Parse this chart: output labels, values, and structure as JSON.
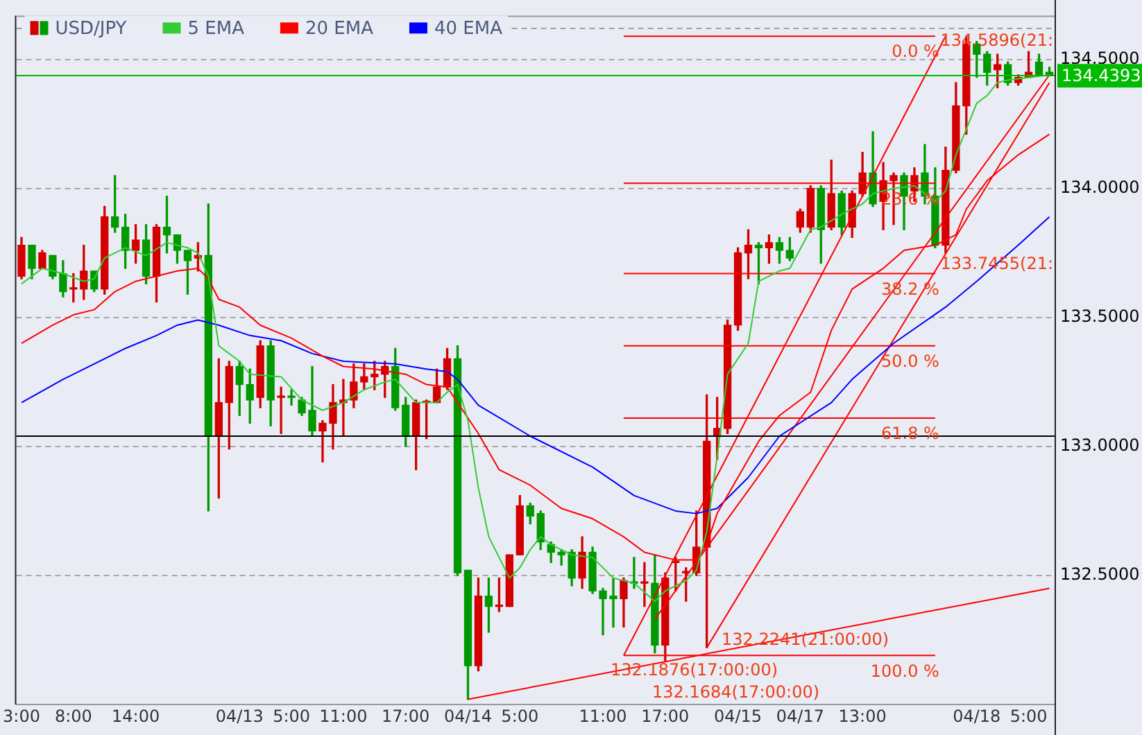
{
  "chart_data": {
    "type": "candlestick",
    "categories": [
      "3:00",
      null,
      null,
      null,
      null,
      "8:00",
      null,
      null,
      null,
      null,
      null,
      "14:00",
      null,
      null,
      null,
      null,
      null,
      null,
      null,
      null,
      null,
      "04/13",
      null,
      null,
      null,
      null,
      "5:00",
      null,
      null,
      null,
      null,
      "11:00",
      null,
      null,
      null,
      null,
      null,
      "17:00",
      null,
      null,
      null,
      null,
      null,
      "04/14",
      null,
      null,
      null,
      null,
      "5:00",
      null,
      null,
      null,
      null,
      null,
      null,
      null,
      "11:00",
      null,
      null,
      null,
      null,
      null,
      "17:00",
      null,
      null,
      null,
      null,
      null,
      null,
      "04/15",
      null,
      null,
      null,
      null,
      null,
      "04/17",
      null,
      null,
      null,
      null,
      null,
      "13:00",
      null,
      null,
      null,
      null,
      null,
      null,
      null,
      null,
      null,
      null,
      "04/18",
      null,
      null,
      null,
      null,
      "5:00",
      null,
      null
    ],
    "ylim": [
      132.0,
      134.67
    ],
    "yticks": [
      {
        "value": 132.5,
        "label": "132.5000"
      },
      {
        "value": 133,
        "label": "133.0000"
      },
      {
        "value": 133.5,
        "label": "133.5000"
      },
      {
        "value": 134,
        "label": "134.0000"
      },
      {
        "value": 134.5,
        "label": "134.5000"
      }
    ],
    "grid": "y",
    "legend": "top left",
    "series": [
      {
        "name": "USD/JPY",
        "ohlc": [
          [
            133.66,
            133.81,
            133.65,
            133.78
          ],
          [
            133.78,
            133.78,
            133.65,
            133.69
          ],
          [
            133.69,
            133.76,
            133.69,
            133.75
          ],
          [
            133.74,
            133.74,
            133.65,
            133.66
          ],
          [
            133.67,
            133.72,
            133.58,
            133.6
          ],
          [
            133.61,
            133.67,
            133.56,
            133.61
          ],
          [
            133.61,
            133.78,
            133.57,
            133.68
          ],
          [
            133.68,
            133.68,
            133.6,
            133.61
          ],
          [
            133.61,
            133.93,
            133.59,
            133.89
          ],
          [
            133.89,
            134.05,
            133.83,
            133.85
          ],
          [
            133.85,
            133.9,
            133.69,
            133.76
          ],
          [
            133.76,
            133.86,
            133.71,
            133.8
          ],
          [
            133.8,
            133.86,
            133.63,
            133.66
          ],
          [
            133.66,
            133.86,
            133.56,
            133.85
          ],
          [
            133.85,
            133.97,
            133.75,
            133.82
          ],
          [
            133.82,
            133.82,
            133.71,
            133.76
          ],
          [
            133.76,
            133.76,
            133.59,
            133.72
          ],
          [
            133.73,
            133.79,
            133.68,
            133.74
          ],
          [
            133.74,
            133.94,
            132.75,
            133.04
          ],
          [
            133.04,
            133.34,
            132.8,
            133.17
          ],
          [
            133.17,
            133.33,
            132.99,
            133.31
          ],
          [
            133.31,
            133.33,
            133.12,
            133.24
          ],
          [
            133.24,
            133.3,
            133.09,
            133.18
          ],
          [
            133.19,
            133.41,
            133.15,
            133.39
          ],
          [
            133.39,
            133.41,
            133.08,
            133.18
          ],
          [
            133.19,
            133.23,
            133.05,
            133.19
          ],
          [
            133.19,
            133.22,
            133.16,
            133.19
          ],
          [
            133.18,
            133.19,
            133.12,
            133.13
          ],
          [
            133.14,
            133.31,
            133.04,
            133.06
          ],
          [
            133.06,
            133.1,
            132.94,
            133.09
          ],
          [
            133.09,
            133.24,
            132.99,
            133.17
          ],
          [
            133.17,
            133.26,
            133.04,
            133.18
          ],
          [
            133.18,
            133.32,
            133.15,
            133.25
          ],
          [
            133.25,
            133.32,
            133.22,
            133.27
          ],
          [
            133.27,
            133.33,
            133.22,
            133.28
          ],
          [
            133.28,
            133.33,
            133.19,
            133.31
          ],
          [
            133.31,
            133.38,
            133.14,
            133.15
          ],
          [
            133.16,
            133.19,
            133.0,
            133.04
          ],
          [
            133.04,
            133.18,
            132.91,
            133.17
          ],
          [
            133.17,
            133.18,
            133.03,
            133.17
          ],
          [
            133.17,
            133.3,
            133.17,
            133.23
          ],
          [
            133.23,
            133.38,
            133.22,
            133.34
          ],
          [
            133.34,
            133.39,
            132.5,
            132.51
          ],
          [
            132.52,
            132.52,
            132.02,
            132.15
          ],
          [
            132.15,
            132.49,
            132.13,
            132.42
          ],
          [
            132.42,
            132.49,
            132.28,
            132.38
          ],
          [
            132.38,
            132.49,
            132.36,
            132.38
          ],
          [
            132.38,
            132.58,
            132.38,
            132.58
          ],
          [
            132.58,
            132.81,
            132.58,
            132.77
          ],
          [
            132.77,
            132.78,
            132.7,
            132.73
          ],
          [
            132.74,
            132.75,
            132.6,
            132.63
          ],
          [
            132.62,
            132.63,
            132.55,
            132.59
          ],
          [
            132.59,
            132.6,
            132.54,
            132.58
          ],
          [
            132.59,
            132.6,
            132.46,
            132.49
          ],
          [
            132.49,
            132.65,
            132.45,
            132.59
          ],
          [
            132.59,
            132.61,
            132.43,
            132.44
          ],
          [
            132.44,
            132.45,
            132.27,
            132.41
          ],
          [
            132.42,
            132.49,
            132.3,
            132.41
          ],
          [
            132.41,
            132.49,
            132.3,
            132.48
          ],
          [
            132.47,
            132.57,
            132.45,
            132.47
          ],
          [
            132.47,
            132.55,
            132.38,
            132.47
          ],
          [
            132.47,
            132.58,
            132.2,
            132.23
          ],
          [
            132.23,
            132.51,
            132.17,
            132.49
          ],
          [
            132.55,
            132.57,
            132.44,
            132.55
          ],
          [
            132.51,
            132.53,
            132.4,
            132.51
          ],
          [
            132.51,
            132.75,
            132.5,
            132.61
          ],
          [
            132.61,
            133.2,
            132.22,
            133.02
          ],
          [
            133.04,
            133.19,
            132.95,
            133.07
          ],
          [
            133.07,
            133.49,
            133.05,
            133.47
          ],
          [
            133.47,
            133.77,
            133.45,
            133.75
          ],
          [
            133.75,
            133.84,
            133.65,
            133.78
          ],
          [
            133.78,
            133.79,
            133.63,
            133.77
          ],
          [
            133.77,
            133.82,
            133.71,
            133.79
          ],
          [
            133.79,
            133.81,
            133.71,
            133.76
          ],
          [
            133.76,
            133.81,
            133.72,
            133.73
          ],
          [
            133.85,
            133.92,
            133.83,
            133.91
          ],
          [
            133.85,
            134.01,
            133.83,
            134.0
          ],
          [
            134.0,
            134.01,
            133.71,
            133.84
          ],
          [
            133.85,
            134.11,
            133.84,
            133.98
          ],
          [
            133.98,
            133.99,
            133.82,
            133.85
          ],
          [
            133.85,
            133.99,
            133.81,
            133.98
          ],
          [
            133.98,
            134.14,
            133.97,
            134.06
          ],
          [
            134.06,
            134.22,
            133.93,
            133.94
          ],
          [
            133.95,
            134.1,
            133.84,
            134.03
          ],
          [
            134.03,
            134.06,
            133.86,
            134.05
          ],
          [
            134.05,
            134.06,
            133.84,
            133.97
          ],
          [
            133.99,
            134.08,
            133.95,
            134.05
          ],
          [
            134.06,
            134.17,
            133.94,
            133.97
          ],
          [
            133.97,
            134.08,
            133.77,
            133.78
          ],
          [
            133.78,
            134.16,
            133.75,
            134.07
          ],
          [
            134.07,
            134.41,
            134.06,
            134.32
          ],
          [
            134.32,
            134.59,
            134.21,
            134.56
          ],
          [
            134.56,
            134.57,
            134.43,
            134.52
          ],
          [
            134.52,
            134.53,
            134.4,
            134.45
          ],
          [
            134.46,
            134.52,
            134.39,
            134.48
          ],
          [
            134.48,
            134.49,
            134.4,
            134.41
          ],
          [
            134.41,
            134.44,
            134.4,
            134.43
          ],
          [
            134.43,
            134.53,
            134.43,
            134.45
          ],
          [
            134.49,
            134.52,
            134.44,
            134.44
          ],
          [
            134.45,
            134.47,
            134.44,
            134.44
          ]
        ],
        "colors": [
          "#d40000",
          "#009a00",
          "#d40000",
          "#009a00",
          "#009a00",
          "#d40000",
          "#d40000",
          "#009a00",
          "#d40000",
          "#009a00",
          "#009a00",
          "#d40000",
          "#009a00",
          "#d40000",
          "#009a00",
          "#009a00",
          "#009a00",
          "#d40000",
          "#009a00",
          "#d40000",
          "#d40000",
          "#009a00",
          "#009a00",
          "#d40000",
          "#009a00",
          "#d40000",
          "#009a00",
          "#009a00",
          "#009a00",
          "#d40000",
          "#d40000",
          "#d40000",
          "#d40000",
          "#d40000",
          "#d40000",
          "#d40000",
          "#009a00",
          "#009a00",
          "#d40000",
          "#d40000",
          "#d40000",
          "#d40000",
          "#009a00",
          "#009a00",
          "#d40000",
          "#009a00",
          "#d40000",
          "#d40000",
          "#d40000",
          "#009a00",
          "#009a00",
          "#009a00",
          "#009a00",
          "#009a00",
          "#d40000",
          "#009a00",
          "#009a00",
          "#009a00",
          "#d40000",
          "#009a00",
          "#d40000",
          "#009a00",
          "#d40000",
          "#d40000",
          "#d40000",
          "#d40000",
          "#d40000",
          "#d40000",
          "#d40000",
          "#d40000",
          "#d40000",
          "#009a00",
          "#d40000",
          "#009a00",
          "#009a00",
          "#d40000",
          "#d40000",
          "#009a00",
          "#d40000",
          "#009a00",
          "#d40000",
          "#d40000",
          "#009a00",
          "#d40000",
          "#d40000",
          "#009a00",
          "#d40000",
          "#009a00",
          "#009a00",
          "#d40000",
          "#d40000",
          "#d40000",
          "#009a00",
          "#009a00",
          "#d40000",
          "#009a00",
          "#d40000",
          "#d40000",
          "#009a00",
          "#009a00"
        ]
      },
      {
        "type": "line",
        "name": "5 EMA",
        "color": "#33cc33",
        "values": [
          133.63,
          null,
          133.69,
          null,
          133.67,
          null,
          133.64,
          133.65,
          133.73,
          null,
          133.77,
          null,
          133.74,
          null,
          133.79,
          null,
          133.77,
          133.75,
          133.66,
          133.39,
          null,
          133.33,
          133.28,
          null,
          null,
          133.27,
          null,
          133.18,
          null,
          133.14,
          null,
          133.17,
          null,
          133.22,
          null,
          133.25,
          133.26,
          null,
          133.17,
          null,
          133.17,
          133.21,
          133.24,
          133.1,
          132.84,
          132.65,
          null,
          132.49,
          132.53,
          132.6,
          132.65,
          132.62,
          null,
          132.58,
          null,
          132.57,
          null,
          132.49,
          null,
          132.47,
          null,
          132.4,
          132.44,
          null,
          132.48,
          132.52,
          132.67,
          132.96,
          133.28,
          null,
          133.4,
          133.64,
          null,
          133.68,
          133.69,
          null,
          133.84,
          133.85,
          null,
          133.9,
          null,
          133.94,
          133.98,
          null,
          134.0,
          null,
          134.01,
          null,
          133.95,
          133.99,
          134.13,
          null,
          134.33,
          134.36,
          134.41,
          134.42,
          null,
          134.43,
          null,
          134.44
        ]
      },
      {
        "type": "line",
        "name": "20 EMA",
        "color": "#ff0000",
        "values": [
          133.4,
          null,
          null,
          133.47,
          null,
          133.51,
          null,
          133.53,
          null,
          133.6,
          null,
          133.64,
          null,
          null,
          null,
          133.68,
          null,
          133.69,
          133.65,
          133.57,
          null,
          133.54,
          null,
          133.47,
          null,
          null,
          133.42,
          null,
          null,
          133.35,
          null,
          133.31,
          null,
          null,
          133.3,
          null,
          null,
          133.28,
          null,
          133.24,
          null,
          133.23,
          133.17,
          null,
          133.05,
          null,
          132.91,
          null,
          null,
          132.85,
          null,
          null,
          132.76,
          null,
          null,
          132.72,
          null,
          null,
          132.65,
          null,
          132.59,
          null,
          null,
          132.56,
          null,
          132.56,
          132.62,
          132.74,
          null,
          132.88,
          null,
          133.02,
          null,
          133.12,
          null,
          null,
          133.21,
          null,
          133.45,
          null,
          133.61,
          null,
          null,
          133.69,
          null,
          133.76,
          null,
          null,
          133.78,
          null,
          133.82,
          133.92,
          null,
          134.03,
          null,
          null,
          134.13,
          null,
          null,
          134.21
        ]
      },
      {
        "type": "line",
        "name": "40 EMA",
        "color": "#0000ff",
        "values": [
          133.17,
          null,
          null,
          null,
          133.26,
          null,
          null,
          133.32,
          null,
          null,
          133.38,
          null,
          null,
          133.43,
          null,
          133.47,
          null,
          133.49,
          null,
          133.47,
          null,
          null,
          133.43,
          null,
          null,
          133.41,
          null,
          null,
          133.36,
          null,
          null,
          133.33,
          null,
          null,
          null,
          null,
          133.32,
          null,
          null,
          133.3,
          null,
          133.29,
          133.26,
          null,
          133.16,
          null,
          null,
          null,
          null,
          133.04,
          null,
          null,
          null,
          null,
          null,
          132.92,
          null,
          null,
          null,
          132.81,
          null,
          null,
          null,
          132.75,
          null,
          132.74,
          null,
          132.76,
          null,
          null,
          132.88,
          null,
          null,
          133.04,
          null,
          null,
          null,
          null,
          133.17,
          null,
          133.26,
          null,
          null,
          null,
          133.4,
          null,
          null,
          null,
          null,
          133.54,
          null,
          null,
          133.64,
          null,
          null,
          null,
          133.78,
          null,
          null,
          133.89
        ]
      },
      {
        "type": "line",
        "color": "#ff0000",
        "values": [
          null,
          null,
          null,
          null,
          null,
          null,
          null,
          null,
          null,
          null,
          null,
          null,
          null,
          null,
          null,
          null,
          null,
          null,
          null,
          null,
          null,
          null,
          null,
          null,
          null,
          null,
          null,
          null,
          null,
          null,
          null,
          null,
          null,
          null,
          null,
          null,
          null,
          null,
          null,
          null,
          null,
          null,
          null,
          null,
          null,
          null,
          null,
          null,
          null,
          null,
          null,
          null,
          null,
          null,
          null,
          null,
          null,
          null,
          134.59,
          null,
          null,
          null,
          null,
          null,
          null,
          null,
          null,
          null,
          null,
          null,
          null,
          null,
          null,
          null,
          null,
          null,
          null,
          null,
          null,
          null,
          null,
          null,
          null,
          null,
          null,
          null,
          null,
          null,
          134.59,
          null,
          null,
          null,
          null,
          null,
          null,
          null,
          null,
          null,
          null,
          null
        ]
      },
      {
        "type": "line",
        "color": "#ff0000",
        "values": [
          null,
          null,
          null,
          null,
          null,
          null,
          null,
          null,
          null,
          null,
          null,
          null,
          null,
          null,
          null,
          null,
          null,
          null,
          null,
          null,
          null,
          null,
          null,
          null,
          null,
          null,
          null,
          null,
          null,
          null,
          null,
          null,
          null,
          null,
          null,
          null,
          null,
          null,
          null,
          null,
          null,
          null,
          null,
          null,
          null,
          null,
          null,
          null,
          null,
          null,
          null,
          null,
          null,
          null,
          null,
          null,
          null,
          null,
          134.02,
          null,
          null,
          null,
          null,
          null,
          null,
          null,
          null,
          null,
          null,
          null,
          null,
          null,
          null,
          null,
          null,
          null,
          null,
          null,
          null,
          null,
          null,
          null,
          null,
          null,
          null,
          null,
          null,
          null,
          134.02,
          null,
          null,
          null,
          null,
          null,
          null,
          null,
          null,
          null,
          null,
          null
        ]
      },
      {
        "type": "line",
        "color": "#ff0000",
        "values": [
          null,
          null,
          null,
          null,
          null,
          null,
          null,
          null,
          null,
          null,
          null,
          null,
          null,
          null,
          null,
          null,
          null,
          null,
          null,
          null,
          null,
          null,
          null,
          null,
          null,
          null,
          null,
          null,
          null,
          null,
          null,
          null,
          null,
          null,
          null,
          null,
          null,
          null,
          null,
          null,
          null,
          null,
          null,
          null,
          null,
          null,
          null,
          null,
          null,
          null,
          null,
          null,
          null,
          null,
          null,
          null,
          null,
          null,
          133.67,
          null,
          null,
          null,
          null,
          null,
          null,
          null,
          null,
          null,
          null,
          null,
          null,
          null,
          null,
          null,
          null,
          null,
          null,
          null,
          null,
          null,
          null,
          null,
          null,
          null,
          null,
          null,
          null,
          null,
          133.67,
          null,
          null,
          null,
          null,
          null,
          null,
          null,
          null,
          null,
          null,
          null
        ]
      },
      {
        "type": "line",
        "color": "#ff0000",
        "values": [
          null,
          null,
          null,
          null,
          null,
          null,
          null,
          null,
          null,
          null,
          null,
          null,
          null,
          null,
          null,
          null,
          null,
          null,
          null,
          null,
          null,
          null,
          null,
          null,
          null,
          null,
          null,
          null,
          null,
          null,
          null,
          null,
          null,
          null,
          null,
          null,
          null,
          null,
          null,
          null,
          null,
          null,
          null,
          null,
          null,
          null,
          null,
          null,
          null,
          null,
          null,
          null,
          null,
          null,
          null,
          null,
          null,
          null,
          133.39,
          null,
          null,
          null,
          null,
          null,
          null,
          null,
          null,
          null,
          null,
          null,
          null,
          null,
          null,
          null,
          null,
          null,
          null,
          null,
          null,
          null,
          null,
          null,
          null,
          null,
          null,
          null,
          null,
          null,
          133.39,
          null,
          null,
          null,
          null,
          null,
          null,
          null,
          null,
          null,
          null,
          null
        ]
      },
      {
        "type": "line",
        "color": "#ff0000",
        "values": [
          null,
          null,
          null,
          null,
          null,
          null,
          null,
          null,
          null,
          null,
          null,
          null,
          null,
          null,
          null,
          null,
          null,
          null,
          null,
          null,
          null,
          null,
          null,
          null,
          null,
          null,
          null,
          null,
          null,
          null,
          null,
          null,
          null,
          null,
          null,
          null,
          null,
          null,
          null,
          null,
          null,
          null,
          null,
          null,
          null,
          null,
          null,
          null,
          null,
          null,
          null,
          null,
          null,
          null,
          null,
          null,
          null,
          null,
          133.11,
          null,
          null,
          null,
          null,
          null,
          null,
          null,
          null,
          null,
          null,
          null,
          null,
          null,
          null,
          null,
          null,
          null,
          null,
          null,
          null,
          null,
          null,
          null,
          null,
          null,
          null,
          null,
          null,
          null,
          133.11,
          null,
          null,
          null,
          null,
          null,
          null,
          null,
          null,
          null,
          null,
          null
        ]
      },
      {
        "type": "line",
        "color": "#ff0000",
        "values": [
          null,
          null,
          null,
          null,
          null,
          null,
          null,
          null,
          null,
          null,
          null,
          null,
          null,
          null,
          null,
          null,
          null,
          null,
          null,
          null,
          null,
          null,
          null,
          null,
          null,
          null,
          null,
          null,
          null,
          null,
          null,
          null,
          null,
          null,
          null,
          null,
          null,
          null,
          null,
          null,
          null,
          null,
          null,
          null,
          null,
          null,
          null,
          null,
          null,
          null,
          null,
          null,
          null,
          null,
          null,
          null,
          null,
          null,
          132.19,
          null,
          null,
          null,
          null,
          null,
          null,
          null,
          null,
          null,
          null,
          null,
          null,
          null,
          null,
          null,
          null,
          null,
          null,
          null,
          null,
          null,
          null,
          null,
          null,
          null,
          null,
          null,
          null,
          null,
          132.19,
          null,
          null,
          null,
          null,
          null,
          null,
          null,
          null,
          null,
          null,
          null
        ]
      },
      {
        "type": "line",
        "color": "#ff0000",
        "values": [
          null,
          null,
          null,
          null,
          null,
          null,
          null,
          null,
          null,
          null,
          null,
          null,
          null,
          null,
          null,
          null,
          null,
          null,
          null,
          null,
          null,
          null,
          null,
          null,
          null,
          null,
          null,
          null,
          null,
          null,
          null,
          null,
          null,
          null,
          null,
          null,
          null,
          null,
          null,
          null,
          null,
          null,
          null,
          null,
          null,
          null,
          null,
          null,
          null,
          null,
          null,
          null,
          null,
          null,
          null,
          null,
          null,
          null,
          132.19,
          null,
          null,
          null,
          null,
          null,
          null,
          null,
          null,
          null,
          null,
          null,
          null,
          null,
          null,
          null,
          null,
          null,
          null,
          null,
          null,
          null,
          null,
          null,
          null,
          null,
          null,
          null,
          null,
          null,
          null,
          134.59,
          null,
          null,
          null,
          null,
          null,
          null,
          null,
          null,
          null,
          null
        ]
      },
      {
        "type": "line",
        "color": "#ff0000",
        "values": [
          null,
          null,
          null,
          null,
          null,
          null,
          null,
          null,
          null,
          null,
          null,
          null,
          null,
          null,
          null,
          null,
          null,
          null,
          null,
          null,
          null,
          null,
          null,
          null,
          null,
          null,
          null,
          null,
          null,
          null,
          null,
          null,
          null,
          null,
          null,
          null,
          null,
          null,
          null,
          null,
          null,
          null,
          null,
          null,
          null,
          null,
          null,
          null,
          null,
          null,
          null,
          null,
          null,
          null,
          null,
          null,
          null,
          null,
          null,
          null,
          null,
          null,
          null,
          null,
          null,
          null,
          132.22,
          null,
          null,
          null,
          null,
          null,
          null,
          null,
          null,
          null,
          null,
          null,
          null,
          null,
          null,
          null,
          null,
          null,
          null,
          null,
          null,
          null,
          null,
          null,
          null,
          null,
          null,
          null,
          null,
          null,
          null,
          null,
          null,
          134.41
        ]
      },
      {
        "type": "line",
        "color": "#ff0000",
        "values": [
          null,
          null,
          null,
          null,
          null,
          null,
          null,
          null,
          null,
          null,
          null,
          null,
          null,
          null,
          null,
          null,
          null,
          null,
          null,
          null,
          null,
          null,
          null,
          null,
          null,
          null,
          null,
          null,
          null,
          null,
          null,
          null,
          null,
          null,
          null,
          null,
          null,
          null,
          null,
          null,
          null,
          null,
          null,
          null,
          null,
          null,
          null,
          null,
          null,
          null,
          null,
          null,
          null,
          null,
          null,
          null,
          null,
          null,
          null,
          null,
          null,
          132.33,
          null,
          null,
          null,
          null,
          null,
          null,
          null,
          null,
          null,
          null,
          null,
          null,
          null,
          null,
          null,
          null,
          null,
          null,
          null,
          null,
          null,
          null,
          null,
          null,
          null,
          null,
          null,
          null,
          null,
          null,
          null,
          null,
          null,
          null,
          null,
          null,
          null,
          134.44
        ]
      },
      {
        "type": "line",
        "color": "#ff0000",
        "values": [
          null,
          null,
          null,
          null,
          null,
          null,
          null,
          null,
          null,
          null,
          null,
          null,
          null,
          null,
          null,
          null,
          null,
          null,
          null,
          null,
          null,
          null,
          null,
          null,
          null,
          null,
          null,
          null,
          null,
          null,
          null,
          null,
          null,
          null,
          null,
          null,
          null,
          null,
          null,
          null,
          null,
          null,
          null,
          132.02,
          null,
          null,
          null,
          null,
          null,
          null,
          null,
          null,
          null,
          null,
          null,
          null,
          null,
          null,
          null,
          null,
          null,
          null,
          null,
          null,
          null,
          null,
          null,
          null,
          null,
          null,
          null,
          null,
          null,
          null,
          null,
          null,
          null,
          null,
          null,
          null,
          null,
          null,
          null,
          null,
          null,
          null,
          null,
          null,
          null,
          null,
          null,
          null,
          null,
          null,
          null,
          null,
          null,
          null,
          null,
          132.45
        ]
      }
    ],
    "ref_lines": [
      {
        "axis": "y",
        "value": 134.625,
        "color": "#a0a0a0",
        "line_style": "dashed"
      },
      {
        "axis": "y",
        "value": 133.04,
        "color": "#000000"
      },
      {
        "axis": "y",
        "value": 134.4393,
        "label": "134.4393",
        "color": "#00bb00"
      }
    ],
    "annotations": [
      {
        "text": "0.0 %",
        "y": 134.59
      },
      {
        "text": "23.6 %",
        "y": 134.02
      },
      {
        "text": "38.2 %",
        "y": 133.67
      },
      {
        "text": "50.0 %",
        "y": 133.39
      },
      {
        "text": "61.8 %",
        "y": 133.11
      },
      {
        "text": "100.0 %",
        "y": 132.19
      },
      "134.5896(21:",
      "133.7455(21:",
      "132.1876(17:00:00)",
      "132.1684(17:00:00)",
      "132.2241(21:00:00)"
    ]
  }
}
